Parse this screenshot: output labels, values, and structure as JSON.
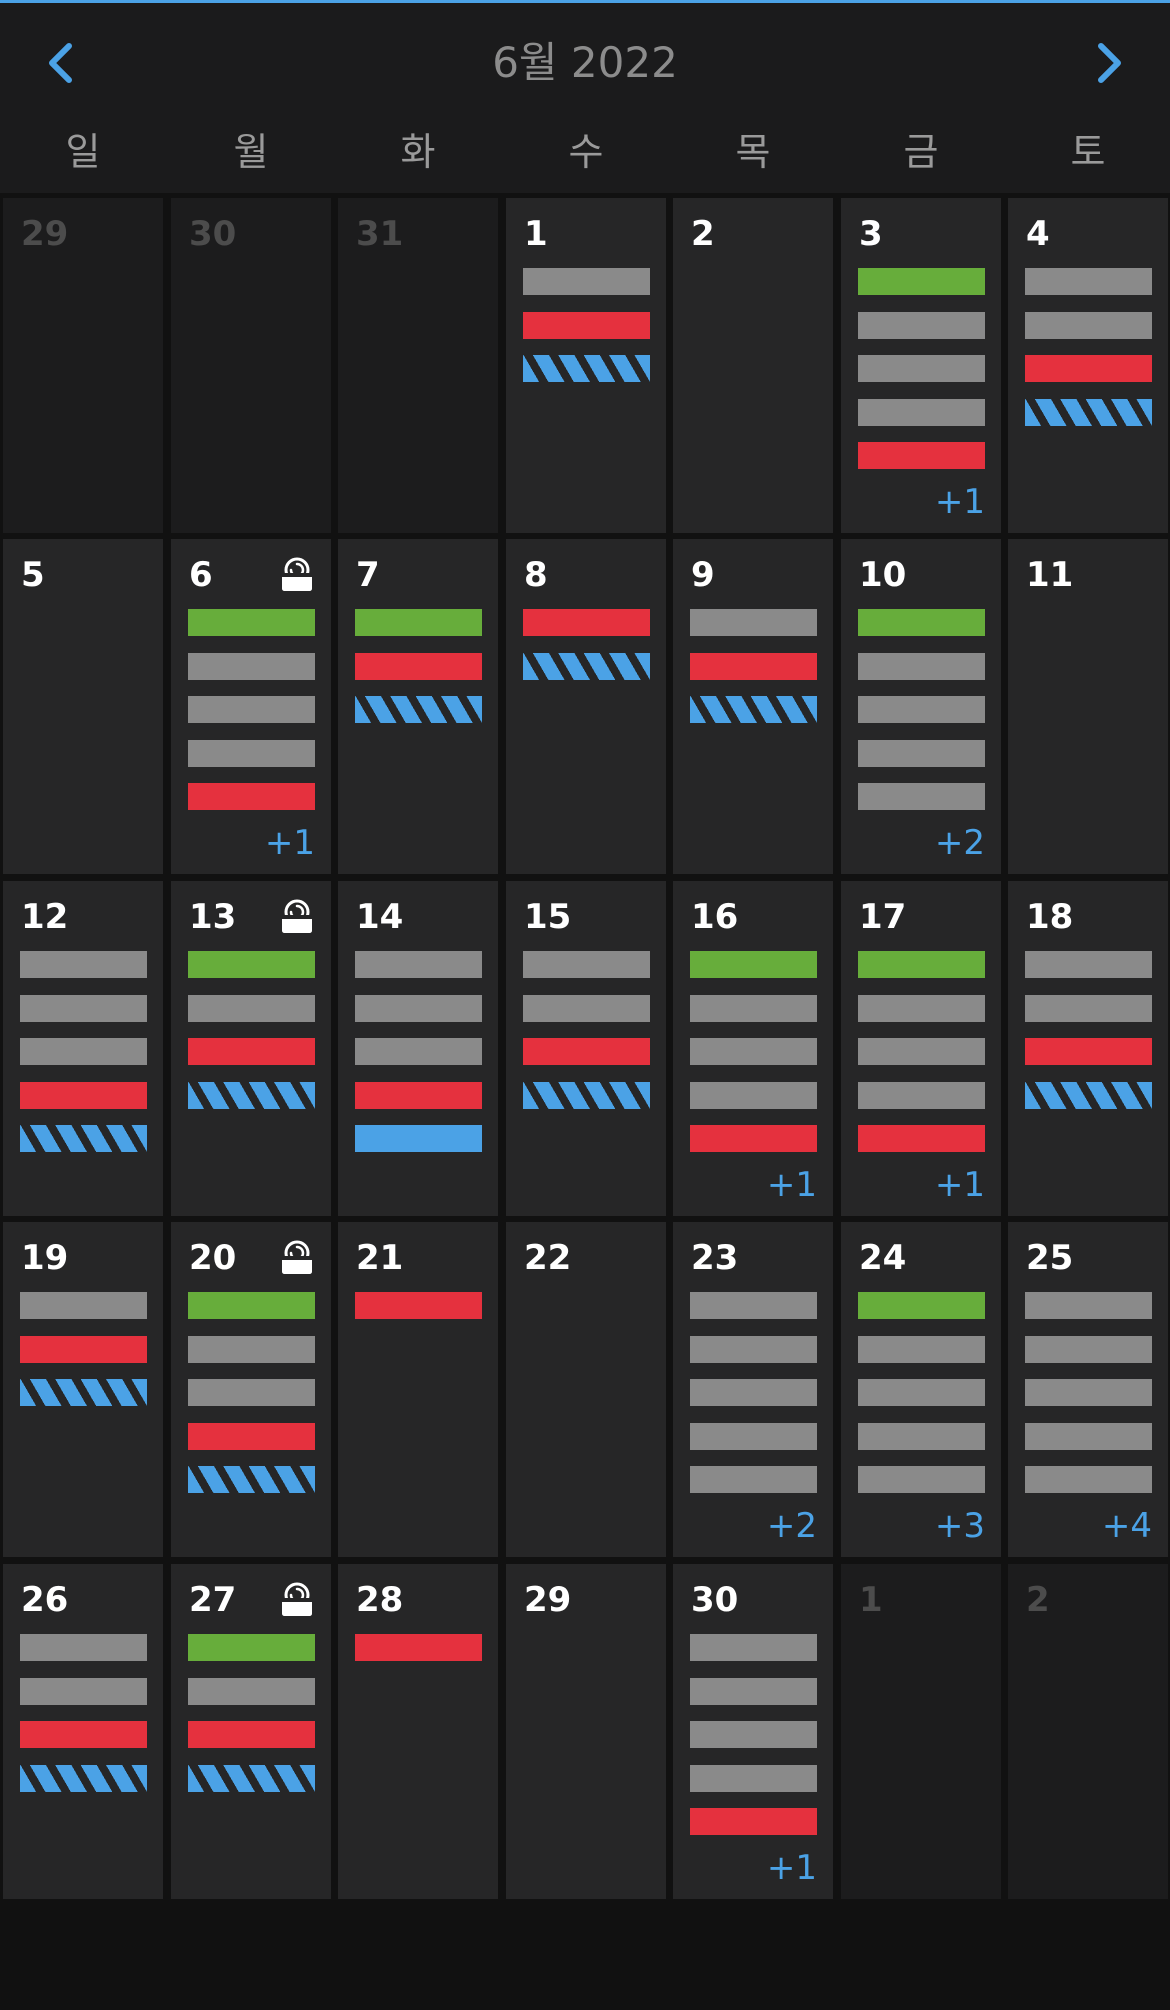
{
  "header": {
    "title": "6월 2022",
    "prev_icon": "chevron-left-icon",
    "next_icon": "chevron-right-icon"
  },
  "weekdays": [
    "일",
    "월",
    "화",
    "수",
    "목",
    "금",
    "토"
  ],
  "colors": {
    "accent": "#4ba2e6",
    "event_gray": "#8a8a8a",
    "event_red": "#e5313e",
    "event_green": "#67ad3b",
    "event_blue_hatched": "#4ba2e6",
    "cell_bg": "#262627",
    "other_month_bg": "#1c1c1d"
  },
  "weeks": [
    [
      {
        "day": "29",
        "other": true,
        "events": []
      },
      {
        "day": "30",
        "other": true,
        "events": []
      },
      {
        "day": "31",
        "other": true,
        "events": []
      },
      {
        "day": "1",
        "events": [
          "gray",
          "red",
          "hatch"
        ]
      },
      {
        "day": "2",
        "events": []
      },
      {
        "day": "3",
        "events": [
          "green",
          "gray",
          "gray",
          "gray",
          "red"
        ],
        "more": "+1"
      },
      {
        "day": "4",
        "events": [
          "gray",
          "gray",
          "red",
          "hatch"
        ]
      }
    ],
    [
      {
        "day": "5",
        "events": []
      },
      {
        "day": "6",
        "icon": "cup-icon",
        "events": [
          "green",
          "gray",
          "gray",
          "gray",
          "red"
        ],
        "more": "+1"
      },
      {
        "day": "7",
        "events": [
          "green",
          "red",
          "hatch"
        ]
      },
      {
        "day": "8",
        "events": [
          "red",
          "hatch"
        ]
      },
      {
        "day": "9",
        "events": [
          "gray",
          "red",
          "hatch"
        ]
      },
      {
        "day": "10",
        "events": [
          "green",
          "gray",
          "gray",
          "gray",
          "gray"
        ],
        "more": "+2"
      },
      {
        "day": "11",
        "events": []
      }
    ],
    [
      {
        "day": "12",
        "events": [
          "gray",
          "gray",
          "gray",
          "red",
          "hatch"
        ]
      },
      {
        "day": "13",
        "icon": "cup-icon",
        "events": [
          "green",
          "gray",
          "red",
          "hatch"
        ]
      },
      {
        "day": "14",
        "events": [
          "gray",
          "gray",
          "gray",
          "red",
          "blue"
        ]
      },
      {
        "day": "15",
        "events": [
          "gray",
          "gray",
          "red",
          "hatch"
        ]
      },
      {
        "day": "16",
        "events": [
          "green",
          "gray",
          "gray",
          "gray",
          "red"
        ],
        "more": "+1"
      },
      {
        "day": "17",
        "events": [
          "green",
          "gray",
          "gray",
          "gray",
          "red"
        ],
        "more": "+1"
      },
      {
        "day": "18",
        "events": [
          "gray",
          "gray",
          "red",
          "hatch"
        ]
      }
    ],
    [
      {
        "day": "19",
        "events": [
          "gray",
          "red",
          "hatch"
        ]
      },
      {
        "day": "20",
        "icon": "cup-icon",
        "events": [
          "green",
          "gray",
          "gray",
          "red",
          "hatch"
        ]
      },
      {
        "day": "21",
        "events": [
          "red"
        ]
      },
      {
        "day": "22",
        "events": []
      },
      {
        "day": "23",
        "events": [
          "gray",
          "gray",
          "gray",
          "gray",
          "gray"
        ],
        "more": "+2"
      },
      {
        "day": "24",
        "events": [
          "green",
          "gray",
          "gray",
          "gray",
          "gray"
        ],
        "more": "+3"
      },
      {
        "day": "25",
        "events": [
          "gray",
          "gray",
          "gray",
          "gray",
          "gray"
        ],
        "more": "+4"
      }
    ],
    [
      {
        "day": "26",
        "events": [
          "gray",
          "gray",
          "red",
          "hatch"
        ]
      },
      {
        "day": "27",
        "icon": "cup-icon",
        "events": [
          "green",
          "gray",
          "red",
          "hatch"
        ]
      },
      {
        "day": "28",
        "events": [
          "red"
        ]
      },
      {
        "day": "29",
        "events": []
      },
      {
        "day": "30",
        "events": [
          "gray",
          "gray",
          "gray",
          "gray",
          "red"
        ],
        "more": "+1"
      },
      {
        "day": "1",
        "other": true,
        "events": []
      },
      {
        "day": "2",
        "other": true,
        "events": []
      }
    ]
  ]
}
